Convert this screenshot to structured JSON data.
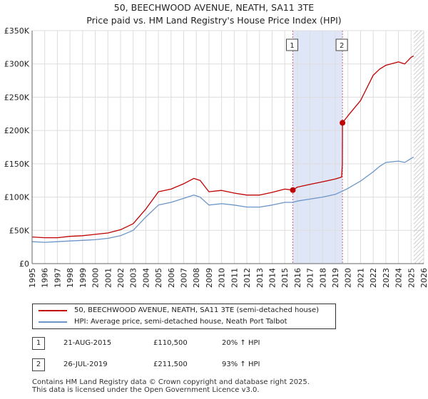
{
  "title": "50, BEECHWOOD AVENUE, NEATH, SA11 3TE",
  "subtitle": "Price paid vs. HM Land Registry's House Price Index (HPI)",
  "colors": {
    "property": "#c00000",
    "hpi": "#6b95c9",
    "highlight_band": "#dfe6f7",
    "marker_line": "#e06060",
    "grid": "#dddddd"
  },
  "chart_data": {
    "type": "line",
    "title": "50, BEECHWOOD AVENUE, NEATH, SA11 3TE",
    "subtitle": "Price paid vs. HM Land Registry's House Price Index (HPI)",
    "xlabel": "",
    "ylabel": "",
    "xlim": [
      1995,
      2026
    ],
    "ylim": [
      0,
      350000
    ],
    "y_ticks": [
      {
        "value": 0,
        "label": "£0"
      },
      {
        "value": 50000,
        "label": "£50K"
      },
      {
        "value": 100000,
        "label": "£100K"
      },
      {
        "value": 150000,
        "label": "£150K"
      },
      {
        "value": 200000,
        "label": "£200K"
      },
      {
        "value": 250000,
        "label": "£250K"
      },
      {
        "value": 300000,
        "label": "£300K"
      },
      {
        "value": 350000,
        "label": "£350K"
      }
    ],
    "x_ticks": [
      "1995",
      "1996",
      "1997",
      "1998",
      "1999",
      "2000",
      "2001",
      "2002",
      "2003",
      "2004",
      "2005",
      "2006",
      "2007",
      "2008",
      "2009",
      "2010",
      "2011",
      "2012",
      "2013",
      "2014",
      "2015",
      "2016",
      "2017",
      "2018",
      "2019",
      "2020",
      "2021",
      "2022",
      "2023",
      "2024",
      "2025",
      "2026"
    ],
    "grid": true,
    "highlight_range": [
      2015.64,
      2019.57
    ],
    "data_end": 2025.2,
    "series": [
      {
        "name": "50, BEECHWOOD AVENUE, NEATH, SA11 3TE (semi-detached house)",
        "x": [
          1995,
          1996,
          1997,
          1998,
          1999,
          2000,
          2001,
          2002,
          2003,
          2004,
          2005,
          2006,
          2007,
          2007.8,
          2008.3,
          2009,
          2010,
          2011,
          2012,
          2013,
          2014,
          2015,
          2015.64,
          2016,
          2017,
          2018,
          2019,
          2019.5,
          2019.56,
          2019.57,
          2020,
          2021,
          2022,
          2022.5,
          2023,
          2024,
          2024.5,
          2025,
          2025.2
        ],
        "y": [
          40000,
          39000,
          39000,
          41000,
          42000,
          44000,
          46000,
          51000,
          60000,
          82000,
          108000,
          112000,
          120000,
          128000,
          125000,
          108000,
          110000,
          106000,
          103000,
          103000,
          107000,
          112000,
          110500,
          115000,
          119000,
          123000,
          127000,
          130000,
          148000,
          211500,
          222000,
          245000,
          283000,
          292000,
          298000,
          303000,
          300000,
          310000,
          312000
        ]
      },
      {
        "name": "HPI: Average price, semi-detached house, Neath Port Talbot",
        "x": [
          1995,
          1996,
          1997,
          1998,
          1999,
          2000,
          2001,
          2002,
          2003,
          2004,
          2005,
          2006,
          2007,
          2007.8,
          2008.3,
          2009,
          2010,
          2011,
          2012,
          2013,
          2014,
          2015,
          2015.64,
          2016,
          2017,
          2018,
          2019,
          2019.57,
          2020,
          2021,
          2022,
          2022.5,
          2023,
          2024,
          2024.5,
          2025,
          2025.2
        ],
        "y": [
          33000,
          32000,
          33000,
          34000,
          35000,
          36000,
          38000,
          42000,
          50000,
          70000,
          88000,
          92000,
          98000,
          103000,
          100000,
          88000,
          90000,
          88000,
          85000,
          85000,
          88000,
          92000,
          92000,
          94000,
          97000,
          100000,
          104000,
          109000,
          113000,
          124000,
          138000,
          146000,
          152000,
          154000,
          152000,
          158000,
          160000
        ]
      }
    ],
    "annotations": [
      {
        "label": "1",
        "x": 2015.64,
        "y": 110500
      },
      {
        "label": "2",
        "x": 2019.57,
        "y": 211500
      }
    ]
  },
  "legend": {
    "property_label": "50, BEECHWOOD AVENUE, NEATH, SA11 3TE (semi-detached house)",
    "hpi_label": "HPI: Average price, semi-detached house, Neath Port Talbot"
  },
  "transactions": [
    {
      "id": "1",
      "date": "21-AUG-2015",
      "price": "£110,500",
      "hpi_change": "20% ↑ HPI"
    },
    {
      "id": "2",
      "date": "26-JUL-2019",
      "price": "£211,500",
      "hpi_change": "93% ↑ HPI"
    }
  ],
  "footer": {
    "line1": "Contains HM Land Registry data © Crown copyright and database right 2025.",
    "line2": "This data is licensed under the Open Government Licence v3.0."
  }
}
